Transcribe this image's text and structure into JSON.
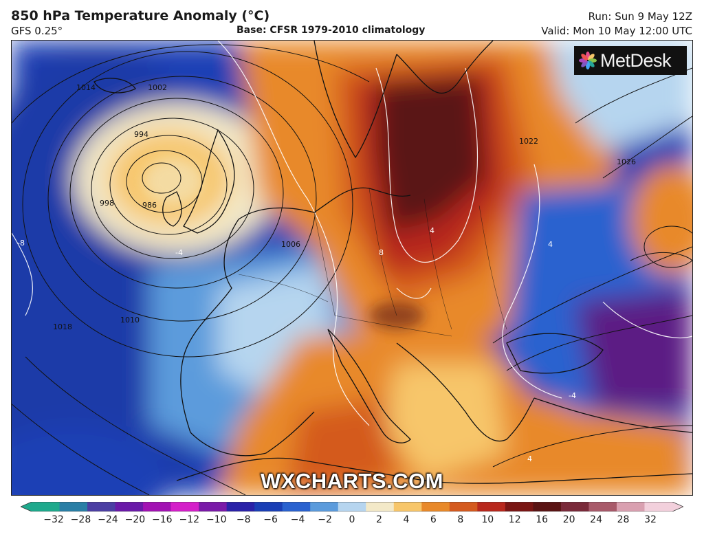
{
  "header": {
    "title": "850 hPa Temperature Anomaly (°C)",
    "model": "GFS 0.25°",
    "base": "Base: CFSR 1979-2010 climatology",
    "run": "Run: Sun 9 May 12Z",
    "valid": "Valid: Mon 10 May 12:00 UTC"
  },
  "map": {
    "region": "Europe",
    "logo_text": "MetDesk",
    "watermark": "WXCHARTS.COM",
    "isobar_labels": [
      {
        "text": "986"
      },
      {
        "text": "994"
      },
      {
        "text": "998"
      },
      {
        "text": "1002"
      },
      {
        "text": "1006"
      },
      {
        "text": "1010"
      },
      {
        "text": "1014"
      },
      {
        "text": "1018"
      },
      {
        "text": "1022"
      },
      {
        "text": "1026"
      }
    ],
    "anomaly_labels": [
      {
        "text": "-8"
      },
      {
        "text": "-4"
      },
      {
        "text": "4"
      },
      {
        "text": "8"
      },
      {
        "text": "4"
      },
      {
        "text": "-4"
      },
      {
        "text": "4"
      }
    ],
    "colors": {
      "sea_cold": "#1a3fb5",
      "land_cold": "#5b9bdc",
      "near_zero": "#f3e9c8",
      "warm": "#e8892a",
      "hot": "#b8281d",
      "very_hot": "#5a1414",
      "purple": "#5c1a84"
    }
  },
  "colorbar": {
    "ticks": [
      "−32",
      "−28",
      "−24",
      "−20",
      "−16",
      "−12",
      "−10",
      "−8",
      "−6",
      "−4",
      "−2",
      "0",
      "2",
      "4",
      "6",
      "8",
      "10",
      "12",
      "16",
      "20",
      "24",
      "28",
      "32"
    ],
    "colors": [
      "#1ea98c",
      "#2a7fa6",
      "#4b3fa3",
      "#6a1aa8",
      "#a212b3",
      "#d41fc9",
      "#7a1aa8",
      "#2a22a8",
      "#1a3fb5",
      "#2a62cf",
      "#5b9bdc",
      "#b6d5ef",
      "#f3e9c8",
      "#f7c66a",
      "#e8892a",
      "#d45a1f",
      "#b8281d",
      "#7a1614",
      "#5a1414",
      "#7a2a3a",
      "#a85a6a",
      "#d9a0b0",
      "#f2d0dc"
    ]
  }
}
